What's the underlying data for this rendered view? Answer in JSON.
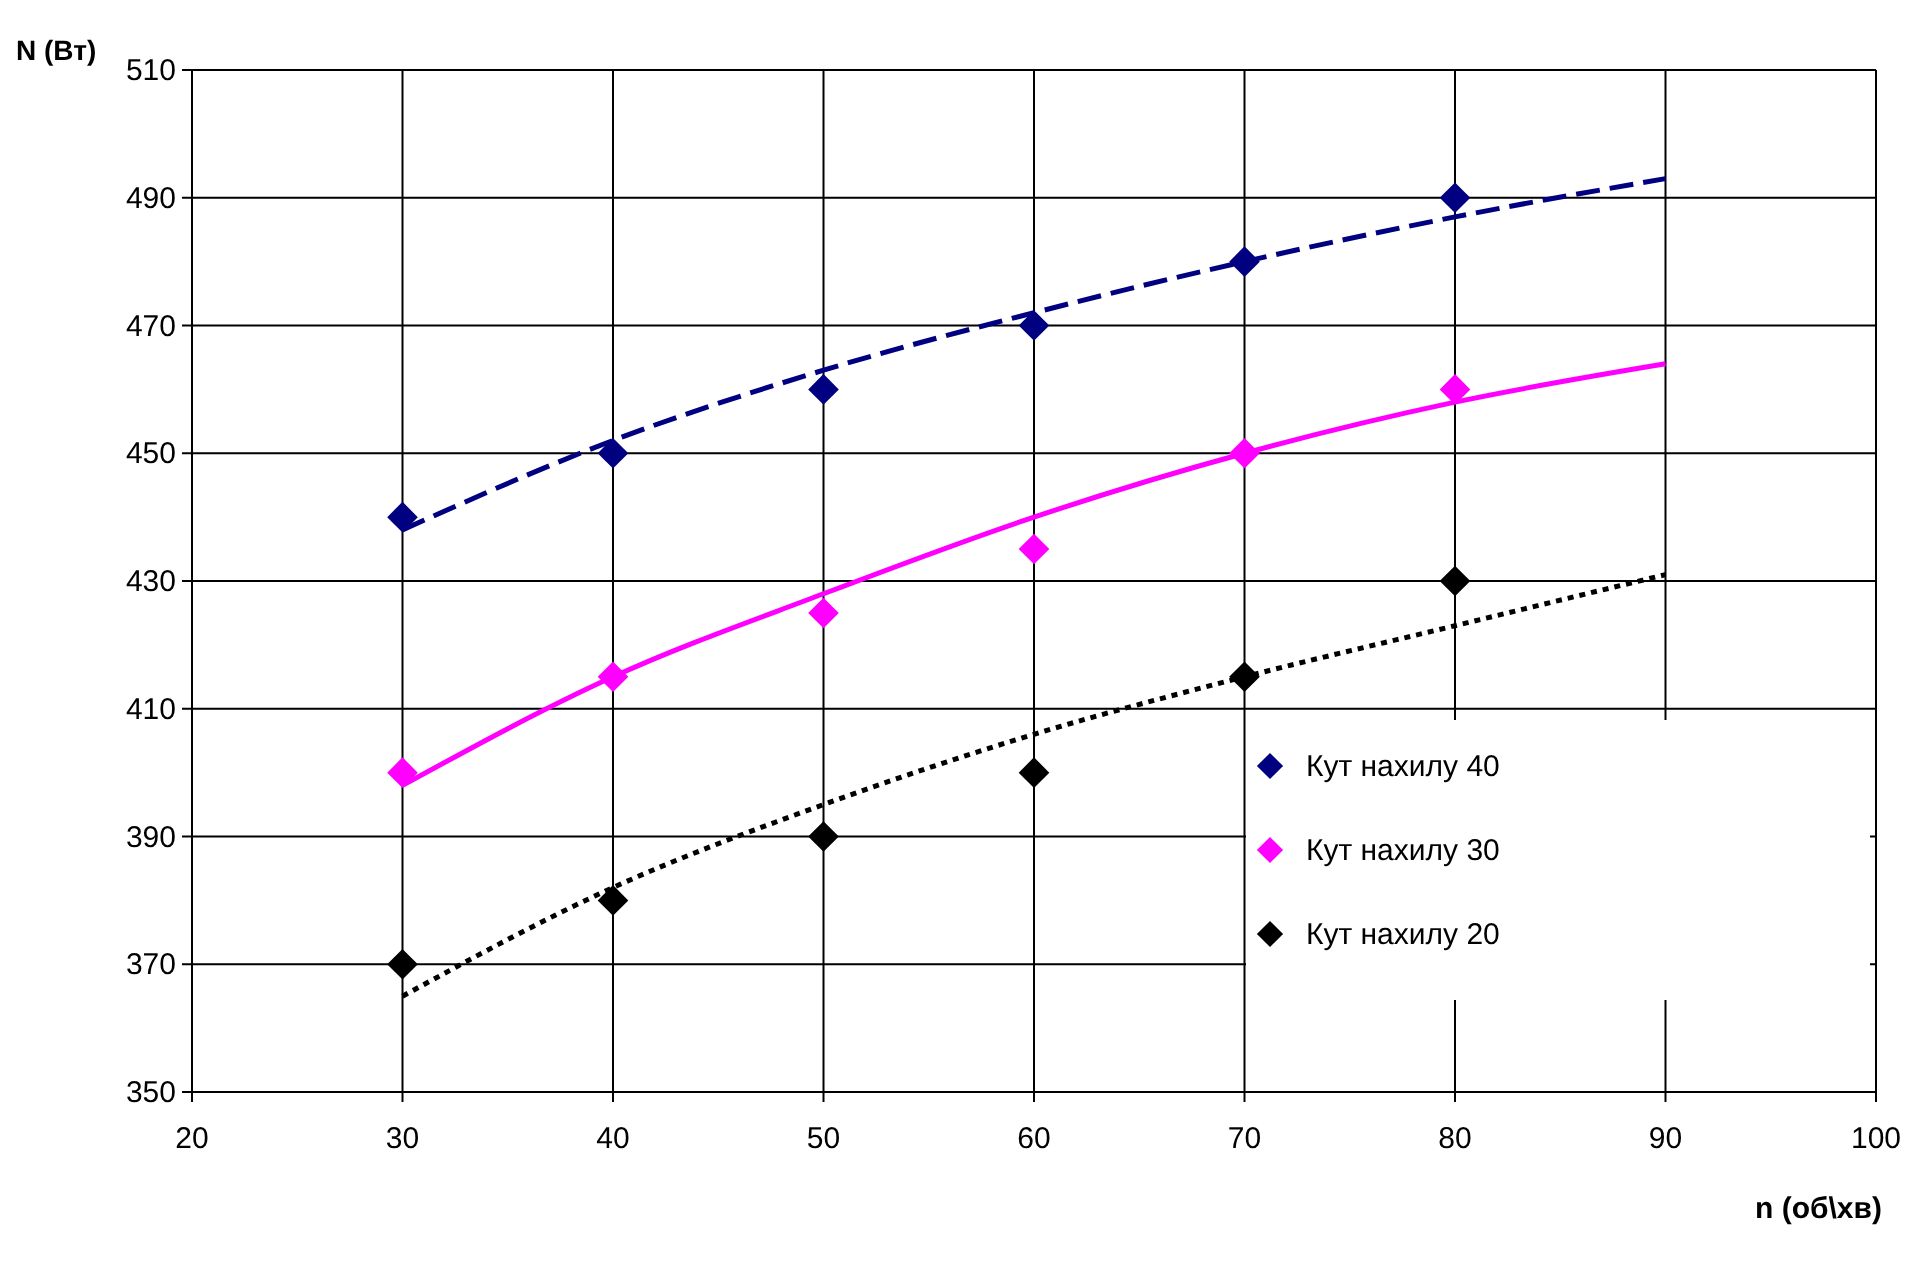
{
  "chart_data": {
    "type": "scatter",
    "xlabel": "n (об\\хв)",
    "ylabel": "N (Вт)",
    "xlim": [
      20,
      100
    ],
    "xticks": [
      20,
      30,
      40,
      50,
      60,
      70,
      80,
      90,
      100
    ],
    "ylim": [
      350,
      510
    ],
    "yticks": [
      350,
      370,
      390,
      410,
      430,
      450,
      470,
      490,
      510
    ],
    "grid": true,
    "legend": "right",
    "marker": "diamond",
    "series": [
      {
        "name": "Кут нахилу 40",
        "color": "#000080",
        "x": [
          30,
          40,
          50,
          60,
          70,
          80
        ],
        "values": [
          440,
          450,
          460,
          470,
          480,
          490
        ]
      },
      {
        "name": "Кут нахилу 30",
        "color": "#ff00ff",
        "x": [
          30,
          40,
          50,
          60,
          70,
          80
        ],
        "values": [
          400,
          415,
          425,
          435,
          450,
          460
        ]
      },
      {
        "name": "Кут нахилу 20",
        "color": "#000000",
        "x": [
          30,
          40,
          50,
          60,
          70,
          80
        ],
        "values": [
          370,
          380,
          390,
          400,
          415,
          430
        ]
      },
      {
        "type": "line",
        "marker": "none",
        "color": "#000080",
        "line_style": "dashed",
        "x": [
          30,
          40,
          50,
          60,
          70,
          80,
          90
        ],
        "values": [
          438,
          452,
          463,
          472,
          480,
          487,
          493
        ]
      },
      {
        "type": "line",
        "marker": "none",
        "color": "#ff00ff",
        "line_style": "solid",
        "x": [
          30,
          40,
          50,
          60,
          70,
          80,
          90
        ],
        "values": [
          398,
          415,
          428,
          440,
          450,
          458,
          464
        ]
      },
      {
        "type": "line",
        "marker": "none",
        "color": "#000000",
        "line_style": "dotted",
        "x": [
          30,
          40,
          50,
          60,
          70,
          80,
          90
        ],
        "values": [
          365,
          382,
          395,
          406,
          415,
          423,
          431
        ]
      }
    ]
  }
}
